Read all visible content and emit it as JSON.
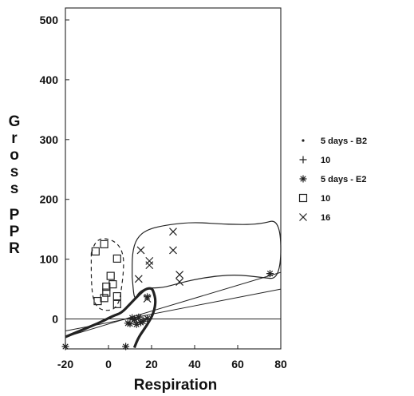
{
  "chart_data": {
    "type": "scatter",
    "title": "",
    "xlabel": "Respiration",
    "ylabel": "Gross PPR",
    "xlim": [
      -20,
      80
    ],
    "ylim": [
      -50,
      520
    ],
    "xticks": [
      -20,
      0,
      20,
      40,
      60,
      80
    ],
    "yticks": [
      0,
      100,
      200,
      300,
      400,
      500
    ],
    "legend_position": "right",
    "series": [
      {
        "name": "5 days - B2",
        "marker": "dot",
        "points": []
      },
      {
        "name": "10",
        "marker": "plus",
        "points": [
          [
            13,
            -5
          ],
          [
            16,
            -2
          ]
        ]
      },
      {
        "name": "5 days - E2",
        "marker": "asterisk",
        "points": [
          [
            -20,
            -46
          ],
          [
            8,
            -46
          ],
          [
            9,
            -7
          ],
          [
            10,
            -8
          ],
          [
            11,
            2
          ],
          [
            12,
            -1
          ],
          [
            13,
            -9
          ],
          [
            14,
            3
          ],
          [
            15,
            -6
          ],
          [
            16,
            -4
          ],
          [
            18,
            1
          ],
          [
            18,
            37
          ],
          [
            75,
            76
          ]
        ]
      },
      {
        "name": "10",
        "marker": "square",
        "points": [
          [
            -6,
            113
          ],
          [
            -2,
            125
          ],
          [
            4,
            101
          ],
          [
            1,
            72
          ],
          [
            2,
            58
          ],
          [
            -1,
            54
          ],
          [
            -1,
            44
          ],
          [
            -5,
            30
          ],
          [
            -2,
            35
          ],
          [
            4,
            38
          ],
          [
            4,
            25
          ]
        ]
      },
      {
        "name": "16",
        "marker": "x",
        "points": [
          [
            15,
            115
          ],
          [
            19,
            90
          ],
          [
            19,
            97
          ],
          [
            14,
            67
          ],
          [
            30,
            146
          ],
          [
            30,
            115
          ],
          [
            33,
            74
          ],
          [
            33,
            62
          ],
          [
            18,
            34
          ]
        ]
      }
    ],
    "lines": [
      {
        "kind": "horizontal",
        "y": 0
      },
      {
        "kind": "regression",
        "from": [
          -20,
          -30
        ],
        "to": [
          80,
          78
        ]
      },
      {
        "kind": "regression",
        "from": [
          -20,
          -20
        ],
        "to": [
          80,
          50
        ]
      }
    ],
    "envelopes": [
      {
        "name": "dashed-envelope",
        "style": "dashed",
        "points": [
          [
            -8,
            110
          ],
          [
            -6,
            130
          ],
          [
            -2,
            136
          ],
          [
            4,
            128
          ],
          [
            7,
            108
          ],
          [
            7,
            80
          ],
          [
            6,
            50
          ],
          [
            5,
            28
          ],
          [
            2,
            14
          ],
          [
            -4,
            15
          ],
          [
            -7,
            30
          ],
          [
            -8,
            60
          ],
          [
            -8,
            110
          ]
        ]
      },
      {
        "name": "upper-envelope",
        "style": "thin",
        "points": [
          [
            11,
            70
          ],
          [
            11,
            110
          ],
          [
            13,
            135
          ],
          [
            18,
            150
          ],
          [
            28,
            158
          ],
          [
            40,
            162
          ],
          [
            55,
            158
          ],
          [
            70,
            158
          ],
          [
            80,
            168
          ],
          [
            80,
            66
          ],
          [
            70,
            70
          ],
          [
            60,
            74
          ],
          [
            50,
            72
          ],
          [
            40,
            66
          ],
          [
            33,
            60
          ],
          [
            25,
            52
          ],
          [
            18,
            52
          ],
          [
            14,
            45
          ],
          [
            12,
            30
          ],
          [
            11,
            70
          ]
        ]
      },
      {
        "name": "lower-envelope",
        "style": "thick",
        "points": [
          [
            -20,
            -30
          ],
          [
            -12,
            -18
          ],
          [
            -4,
            -6
          ],
          [
            2,
            5
          ],
          [
            6,
            10
          ],
          [
            10,
            25
          ],
          [
            14,
            40
          ],
          [
            17,
            50
          ],
          [
            20,
            52
          ],
          [
            21,
            45
          ],
          [
            22,
            30
          ],
          [
            21,
            10
          ],
          [
            18,
            -10
          ],
          [
            14,
            -30
          ],
          [
            12,
            -48
          ]
        ]
      }
    ]
  }
}
